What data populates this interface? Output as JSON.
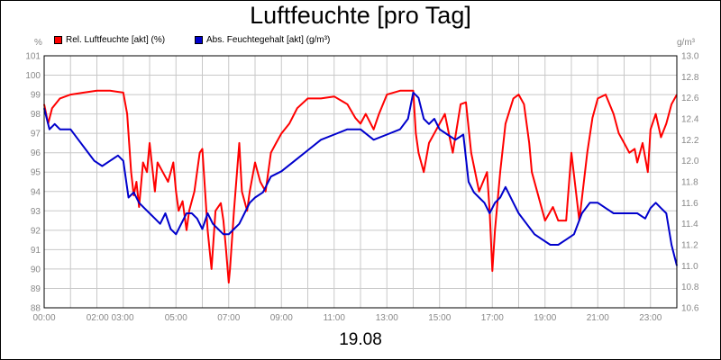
{
  "title": "Luftfeuchte [pro Tag]",
  "date": "19.08",
  "chart_data": {
    "type": "line",
    "title": "Luftfeuchte [pro Tag]",
    "xlabel": "19.08",
    "ylabel_left": "%",
    "ylabel_right": "g/m³",
    "grid": true,
    "legend_position": "top-left",
    "x_range_hours": [
      0,
      24
    ],
    "x_ticks": [
      "00:00",
      "02:00 03:00",
      "05:00",
      "07:00",
      "09:00",
      "11:00",
      "13:00",
      "15:00",
      "17:00",
      "19:00",
      "21:00",
      "23:00"
    ],
    "ylim_left": [
      88,
      101
    ],
    "y_ticks_left": [
      "88",
      "89",
      "90",
      "91",
      "92",
      "93",
      "94",
      "95",
      "96",
      "97",
      "98",
      "99",
      "100",
      "101"
    ],
    "ylim_right": [
      10.6,
      13.0
    ],
    "y_ticks_right": [
      "10.6",
      "10.8",
      "11.0",
      "11.2",
      "11.4",
      "11.6",
      "11.8",
      "12.0",
      "12.2",
      "12.4",
      "12.6",
      "12.8",
      "13.0"
    ],
    "series": [
      {
        "name": "Rel. Luftfeuchte [akt] (%)",
        "color": "#ff0000",
        "axis": "left",
        "x": [
          0,
          0.15,
          0.3,
          0.6,
          1.0,
          1.5,
          2.0,
          2.5,
          3.0,
          3.15,
          3.3,
          3.4,
          3.5,
          3.6,
          3.75,
          3.9,
          4.0,
          4.2,
          4.3,
          4.5,
          4.7,
          4.9,
          5.0,
          5.1,
          5.25,
          5.4,
          5.5,
          5.7,
          5.9,
          6.0,
          6.2,
          6.35,
          6.5,
          6.7,
          6.8,
          6.9,
          7.0,
          7.05,
          7.2,
          7.4,
          7.5,
          7.7,
          7.8,
          8.0,
          8.2,
          8.4,
          8.6,
          8.8,
          9.0,
          9.3,
          9.6,
          10.0,
          10.5,
          11.0,
          11.5,
          11.8,
          12.0,
          12.2,
          12.5,
          12.7,
          13.0,
          13.5,
          14.0,
          14.1,
          14.2,
          14.4,
          14.6,
          14.8,
          15.0,
          15.2,
          15.5,
          15.8,
          16.0,
          16.2,
          16.5,
          16.8,
          16.9,
          17.0,
          17.1,
          17.3,
          17.5,
          17.8,
          18.0,
          18.2,
          18.4,
          18.5,
          18.7,
          19.0,
          19.3,
          19.5,
          19.8,
          20.0,
          20.3,
          20.6,
          20.8,
          21.0,
          21.3,
          21.6,
          21.8,
          22.0,
          22.2,
          22.4,
          22.5,
          22.7,
          22.9,
          23.0,
          23.2,
          23.4,
          23.6,
          23.8,
          24.0
        ],
        "values": [
          98.5,
          97.5,
          98.3,
          98.8,
          99.0,
          99.1,
          99.2,
          99.2,
          99.1,
          98.0,
          95.0,
          93.8,
          94.5,
          93.2,
          95.5,
          95.0,
          96.5,
          94.0,
          95.5,
          95.0,
          94.5,
          95.5,
          94.0,
          93.0,
          93.5,
          92.0,
          93.0,
          94.0,
          96.0,
          96.2,
          92.0,
          90.0,
          93.0,
          93.4,
          92.5,
          91.0,
          89.3,
          90.0,
          93.0,
          96.5,
          94.0,
          93.0,
          94.0,
          95.5,
          94.5,
          94.0,
          96.0,
          96.5,
          97.0,
          97.5,
          98.3,
          98.8,
          98.8,
          98.9,
          98.5,
          97.8,
          97.5,
          98.0,
          97.2,
          98.0,
          99.0,
          99.2,
          99.2,
          97.0,
          96.0,
          95.0,
          96.5,
          97.0,
          97.5,
          98.0,
          96.0,
          98.5,
          98.6,
          96.0,
          94.0,
          95.0,
          93.0,
          89.9,
          92.0,
          95.0,
          97.5,
          98.8,
          99.0,
          98.5,
          96.5,
          95.0,
          94.0,
          92.5,
          93.2,
          92.5,
          92.5,
          96.0,
          92.5,
          96.0,
          97.8,
          98.8,
          99.0,
          98.0,
          97.0,
          96.5,
          96.0,
          96.2,
          95.5,
          96.5,
          95.0,
          97.2,
          98.0,
          96.8,
          97.5,
          98.5,
          99.0
        ]
      },
      {
        "name": "Abs. Feuchtegehalt [akt] (g/m³)",
        "color": "#0000cc",
        "axis": "right",
        "x": [
          0,
          0.2,
          0.4,
          0.6,
          1.0,
          1.3,
          1.6,
          1.9,
          2.2,
          2.5,
          2.8,
          3.0,
          3.2,
          3.4,
          3.6,
          3.8,
          4.0,
          4.2,
          4.4,
          4.6,
          4.8,
          5.0,
          5.2,
          5.4,
          5.6,
          5.8,
          6.0,
          6.2,
          6.4,
          6.6,
          6.8,
          7.0,
          7.2,
          7.4,
          7.6,
          7.8,
          8.0,
          8.3,
          8.6,
          9.0,
          9.5,
          10.0,
          10.5,
          11.0,
          11.5,
          12.0,
          12.5,
          13.0,
          13.5,
          13.8,
          14.0,
          14.2,
          14.4,
          14.6,
          14.8,
          15.0,
          15.3,
          15.6,
          15.9,
          16.1,
          16.3,
          16.5,
          16.7,
          16.9,
          17.1,
          17.3,
          17.5,
          17.8,
          18.0,
          18.3,
          18.6,
          18.9,
          19.2,
          19.5,
          19.8,
          20.1,
          20.4,
          20.7,
          21.0,
          21.3,
          21.6,
          21.9,
          22.2,
          22.5,
          22.8,
          23.0,
          23.2,
          23.4,
          23.6,
          23.8,
          24.0
        ],
        "values": [
          12.5,
          12.3,
          12.35,
          12.3,
          12.3,
          12.2,
          12.1,
          12.0,
          11.95,
          12.0,
          12.05,
          12.0,
          11.65,
          11.7,
          11.6,
          11.55,
          11.5,
          11.45,
          11.4,
          11.5,
          11.35,
          11.3,
          11.4,
          11.5,
          11.5,
          11.45,
          11.35,
          11.5,
          11.4,
          11.35,
          11.3,
          11.3,
          11.35,
          11.4,
          11.5,
          11.6,
          11.65,
          11.7,
          11.85,
          11.9,
          12.0,
          12.1,
          12.2,
          12.25,
          12.3,
          12.3,
          12.2,
          12.25,
          12.3,
          12.4,
          12.65,
          12.6,
          12.4,
          12.35,
          12.4,
          12.3,
          12.25,
          12.2,
          12.25,
          11.8,
          11.7,
          11.65,
          11.6,
          11.5,
          11.6,
          11.65,
          11.75,
          11.6,
          11.5,
          11.4,
          11.3,
          11.25,
          11.2,
          11.2,
          11.25,
          11.3,
          11.5,
          11.6,
          11.6,
          11.55,
          11.5,
          11.5,
          11.5,
          11.5,
          11.45,
          11.55,
          11.6,
          11.55,
          11.5,
          11.2,
          11.0
        ]
      }
    ]
  }
}
